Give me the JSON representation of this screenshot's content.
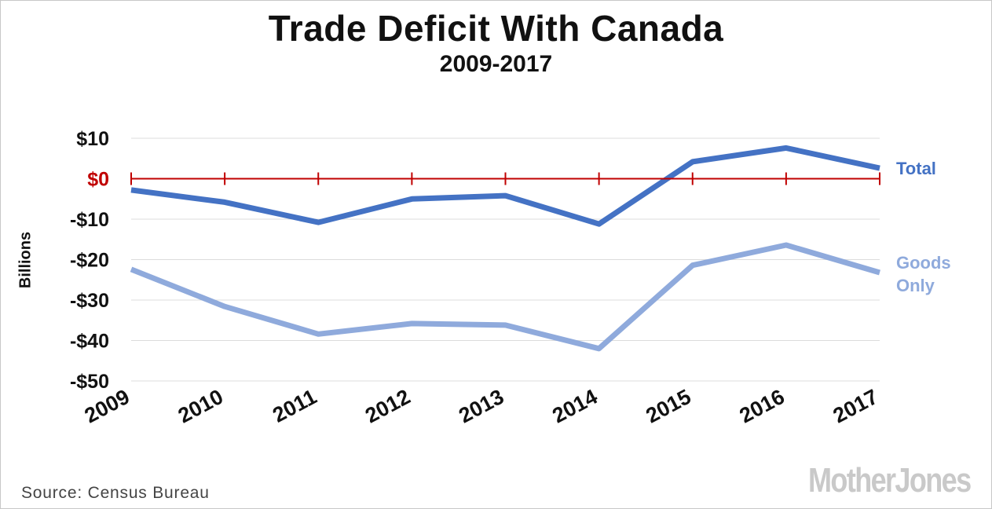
{
  "chart_data": {
    "type": "line",
    "title": "Trade Deficit With Canada",
    "subtitle": "2009-2017",
    "ylabel": "Billions",
    "xlabel": "",
    "x": [
      "2009",
      "2010",
      "2011",
      "2012",
      "2013",
      "2014",
      "2015",
      "2016",
      "2017"
    ],
    "ylim": [
      -50,
      10
    ],
    "yticks": [
      {
        "value": 10,
        "label": "$10"
      },
      {
        "value": 0,
        "label": "$0"
      },
      {
        "value": -10,
        "label": "-$10"
      },
      {
        "value": -20,
        "label": "-$20"
      },
      {
        "value": -30,
        "label": "-$30"
      },
      {
        "value": -40,
        "label": "-$40"
      },
      {
        "value": -50,
        "label": "-$50"
      }
    ],
    "grid": true,
    "legend": "right, labels at line ends",
    "series": [
      {
        "name": "Total",
        "color": "#4472c4",
        "values": [
          -2.8,
          -5.8,
          -10.8,
          -5.0,
          -4.2,
          -11.2,
          4.2,
          7.6,
          2.6
        ]
      },
      {
        "name": "Goods Only",
        "color": "#8faadc",
        "values": [
          -22.4,
          -31.6,
          -38.4,
          -35.8,
          -36.2,
          -42.0,
          -21.4,
          -16.4,
          -23.2
        ]
      }
    ],
    "zero_line_color": "#c00000",
    "zero_label_color": "#c00000"
  },
  "source": "Source:  Census Bureau",
  "logo": "MotherJones"
}
